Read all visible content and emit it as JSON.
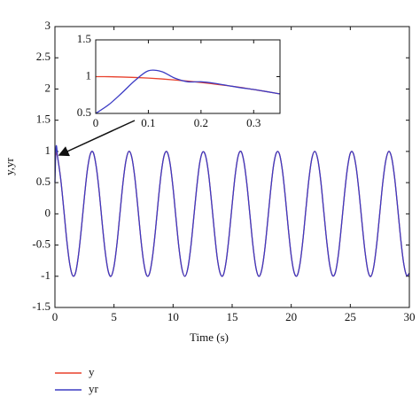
{
  "chart_data": [
    {
      "type": "line",
      "xlabel": "Time (s)",
      "ylabel": "y,yr",
      "xlim": [
        0,
        30
      ],
      "ylim": [
        -1.5,
        3
      ],
      "xticks": [
        0,
        5,
        10,
        15,
        20,
        25,
        30
      ],
      "yticks": [
        -1.5,
        -1,
        -0.5,
        0,
        0.5,
        1,
        1.5,
        2,
        2.5,
        3
      ],
      "x": [
        0,
        0.1,
        0.25,
        0.5,
        0.75,
        1,
        1.25,
        1.5,
        1.75,
        2,
        2.25,
        2.5,
        2.75,
        3,
        3.25,
        3.5,
        3.75,
        4,
        4.25,
        4.5,
        4.75,
        5,
        5.25,
        5.5,
        5.75,
        6,
        6.25,
        6.5,
        6.75,
        7,
        7.25,
        7.5,
        7.75,
        8,
        8.25,
        8.5,
        8.75,
        9,
        9.25,
        9.5,
        9.75,
        10,
        10.25,
        10.5,
        10.75,
        11,
        11.25,
        11.5,
        11.75,
        12,
        12.25,
        12.5,
        12.75,
        13,
        13.25,
        13.5,
        13.75,
        14,
        14.25,
        14.5,
        14.75,
        15,
        15.25,
        15.5,
        15.75,
        16,
        16.25,
        16.5,
        16.75,
        17,
        17.25,
        17.5,
        17.75,
        18,
        18.25,
        18.5,
        18.75,
        19,
        19.25,
        19.5,
        19.75,
        20,
        20.25,
        20.5,
        20.75,
        21,
        21.25,
        21.5,
        21.75,
        22,
        22.25,
        22.5,
        22.75,
        23,
        23.25,
        23.5,
        23.75,
        24,
        24.25,
        24.5,
        24.75,
        25,
        25.25,
        25.5,
        25.75,
        26,
        26.25,
        26.5,
        26.75,
        27,
        27.25,
        27.5,
        27.75,
        28,
        28.25,
        28.5,
        28.75,
        29,
        29.25,
        29.5,
        29.75,
        30
      ],
      "series": [
        {
          "name": "y",
          "color": "#e8412c",
          "values": [
            1,
            0.98,
            0.88,
            0.54,
            0.07,
            -0.42,
            -0.8,
            -0.99,
            -0.94,
            -0.65,
            -0.21,
            0.28,
            0.71,
            0.96,
            0.98,
            0.75,
            0.35,
            -0.15,
            -0.6,
            -0.91,
            -1,
            -0.84,
            -0.48,
            0,
            0.48,
            0.84,
            1,
            0.91,
            0.6,
            0.14,
            -0.36,
            -0.76,
            -0.98,
            -0.96,
            -0.7,
            -0.28,
            0.22,
            0.66,
            0.94,
            0.99,
            0.8,
            0.41,
            -0.08,
            -0.55,
            -0.88,
            -1,
            -0.87,
            -0.53,
            -0.06,
            0.42,
            0.81,
            0.99,
            0.93,
            0.65,
            0.2,
            -0.29,
            -0.72,
            -0.96,
            -0.98,
            -0.75,
            -0.34,
            0.15,
            0.61,
            0.92,
            1,
            0.83,
            0.47,
            -0.01,
            -0.49,
            -0.85,
            -1,
            -0.9,
            -0.59,
            -0.13,
            0.36,
            0.77,
            0.98,
            0.96,
            0.7,
            0.27,
            -0.23,
            -0.67,
            -0.94,
            -0.99,
            -0.79,
            -0.4,
            0.09,
            0.56,
            0.89,
            1,
            0.87,
            0.53,
            0.05,
            -0.43,
            -0.81,
            -0.99,
            -0.93,
            -0.64,
            -0.19,
            0.3,
            0.72,
            0.97,
            0.97,
            0.74,
            0.33,
            -0.16,
            -0.61,
            -0.92,
            -1,
            -0.83,
            -0.46,
            0.02,
            0.5,
            0.85,
            1,
            0.9,
            0.58,
            0.12,
            -0.37,
            -0.77,
            -0.98,
            -0.95
          ]
        },
        {
          "name": "yr",
          "color": "#3b3bc4",
          "values": [
            0.5,
            1.08,
            0.88,
            0.54,
            0.07,
            -0.42,
            -0.8,
            -0.99,
            -0.94,
            -0.65,
            -0.21,
            0.28,
            0.71,
            0.96,
            0.98,
            0.75,
            0.35,
            -0.15,
            -0.6,
            -0.91,
            -1,
            -0.84,
            -0.48,
            0,
            0.48,
            0.84,
            1,
            0.91,
            0.6,
            0.14,
            -0.36,
            -0.76,
            -0.98,
            -0.96,
            -0.7,
            -0.28,
            0.22,
            0.66,
            0.94,
            0.99,
            0.8,
            0.41,
            -0.08,
            -0.55,
            -0.88,
            -1,
            -0.87,
            -0.53,
            -0.06,
            0.42,
            0.81,
            0.99,
            0.93,
            0.65,
            0.2,
            -0.29,
            -0.72,
            -0.96,
            -0.98,
            -0.75,
            -0.34,
            0.15,
            0.61,
            0.92,
            1,
            0.83,
            0.47,
            -0.01,
            -0.49,
            -0.85,
            -1,
            -0.9,
            -0.59,
            -0.13,
            0.36,
            0.77,
            0.98,
            0.96,
            0.7,
            0.27,
            -0.23,
            -0.67,
            -0.94,
            -0.99,
            -0.79,
            -0.4,
            0.09,
            0.56,
            0.89,
            1,
            0.87,
            0.53,
            0.05,
            -0.43,
            -0.81,
            -0.99,
            -0.93,
            -0.64,
            -0.19,
            0.3,
            0.72,
            0.97,
            0.97,
            0.74,
            0.33,
            -0.16,
            -0.61,
            -0.92,
            -1,
            -0.83,
            -0.46,
            0.02,
            0.5,
            0.85,
            1,
            0.9,
            0.58,
            0.12,
            -0.37,
            -0.77,
            -0.98,
            -0.95
          ]
        }
      ]
    },
    {
      "type": "line",
      "xlim": [
        0,
        0.35
      ],
      "ylim": [
        0.5,
        1.5
      ],
      "xticks": [
        0,
        0.1,
        0.2,
        0.3
      ],
      "yticks": [
        0.5,
        1,
        1.5
      ],
      "x": [
        0,
        0.025,
        0.05,
        0.075,
        0.1,
        0.125,
        0.15,
        0.175,
        0.2,
        0.225,
        0.25,
        0.275,
        0.3,
        0.325,
        0.35
      ],
      "series": [
        {
          "name": "y",
          "color": "#e8412c",
          "values": [
            1,
            0.999,
            0.995,
            0.989,
            0.98,
            0.969,
            0.955,
            0.939,
            0.921,
            0.9,
            0.878,
            0.854,
            0.825,
            0.796,
            0.765
          ]
        },
        {
          "name": "yr",
          "color": "#3b3bc4",
          "values": [
            0.5,
            0.62,
            0.78,
            0.95,
            1.08,
            1.07,
            0.98,
            0.93,
            0.93,
            0.91,
            0.88,
            0.85,
            0.825,
            0.796,
            0.765
          ]
        }
      ]
    }
  ]
}
